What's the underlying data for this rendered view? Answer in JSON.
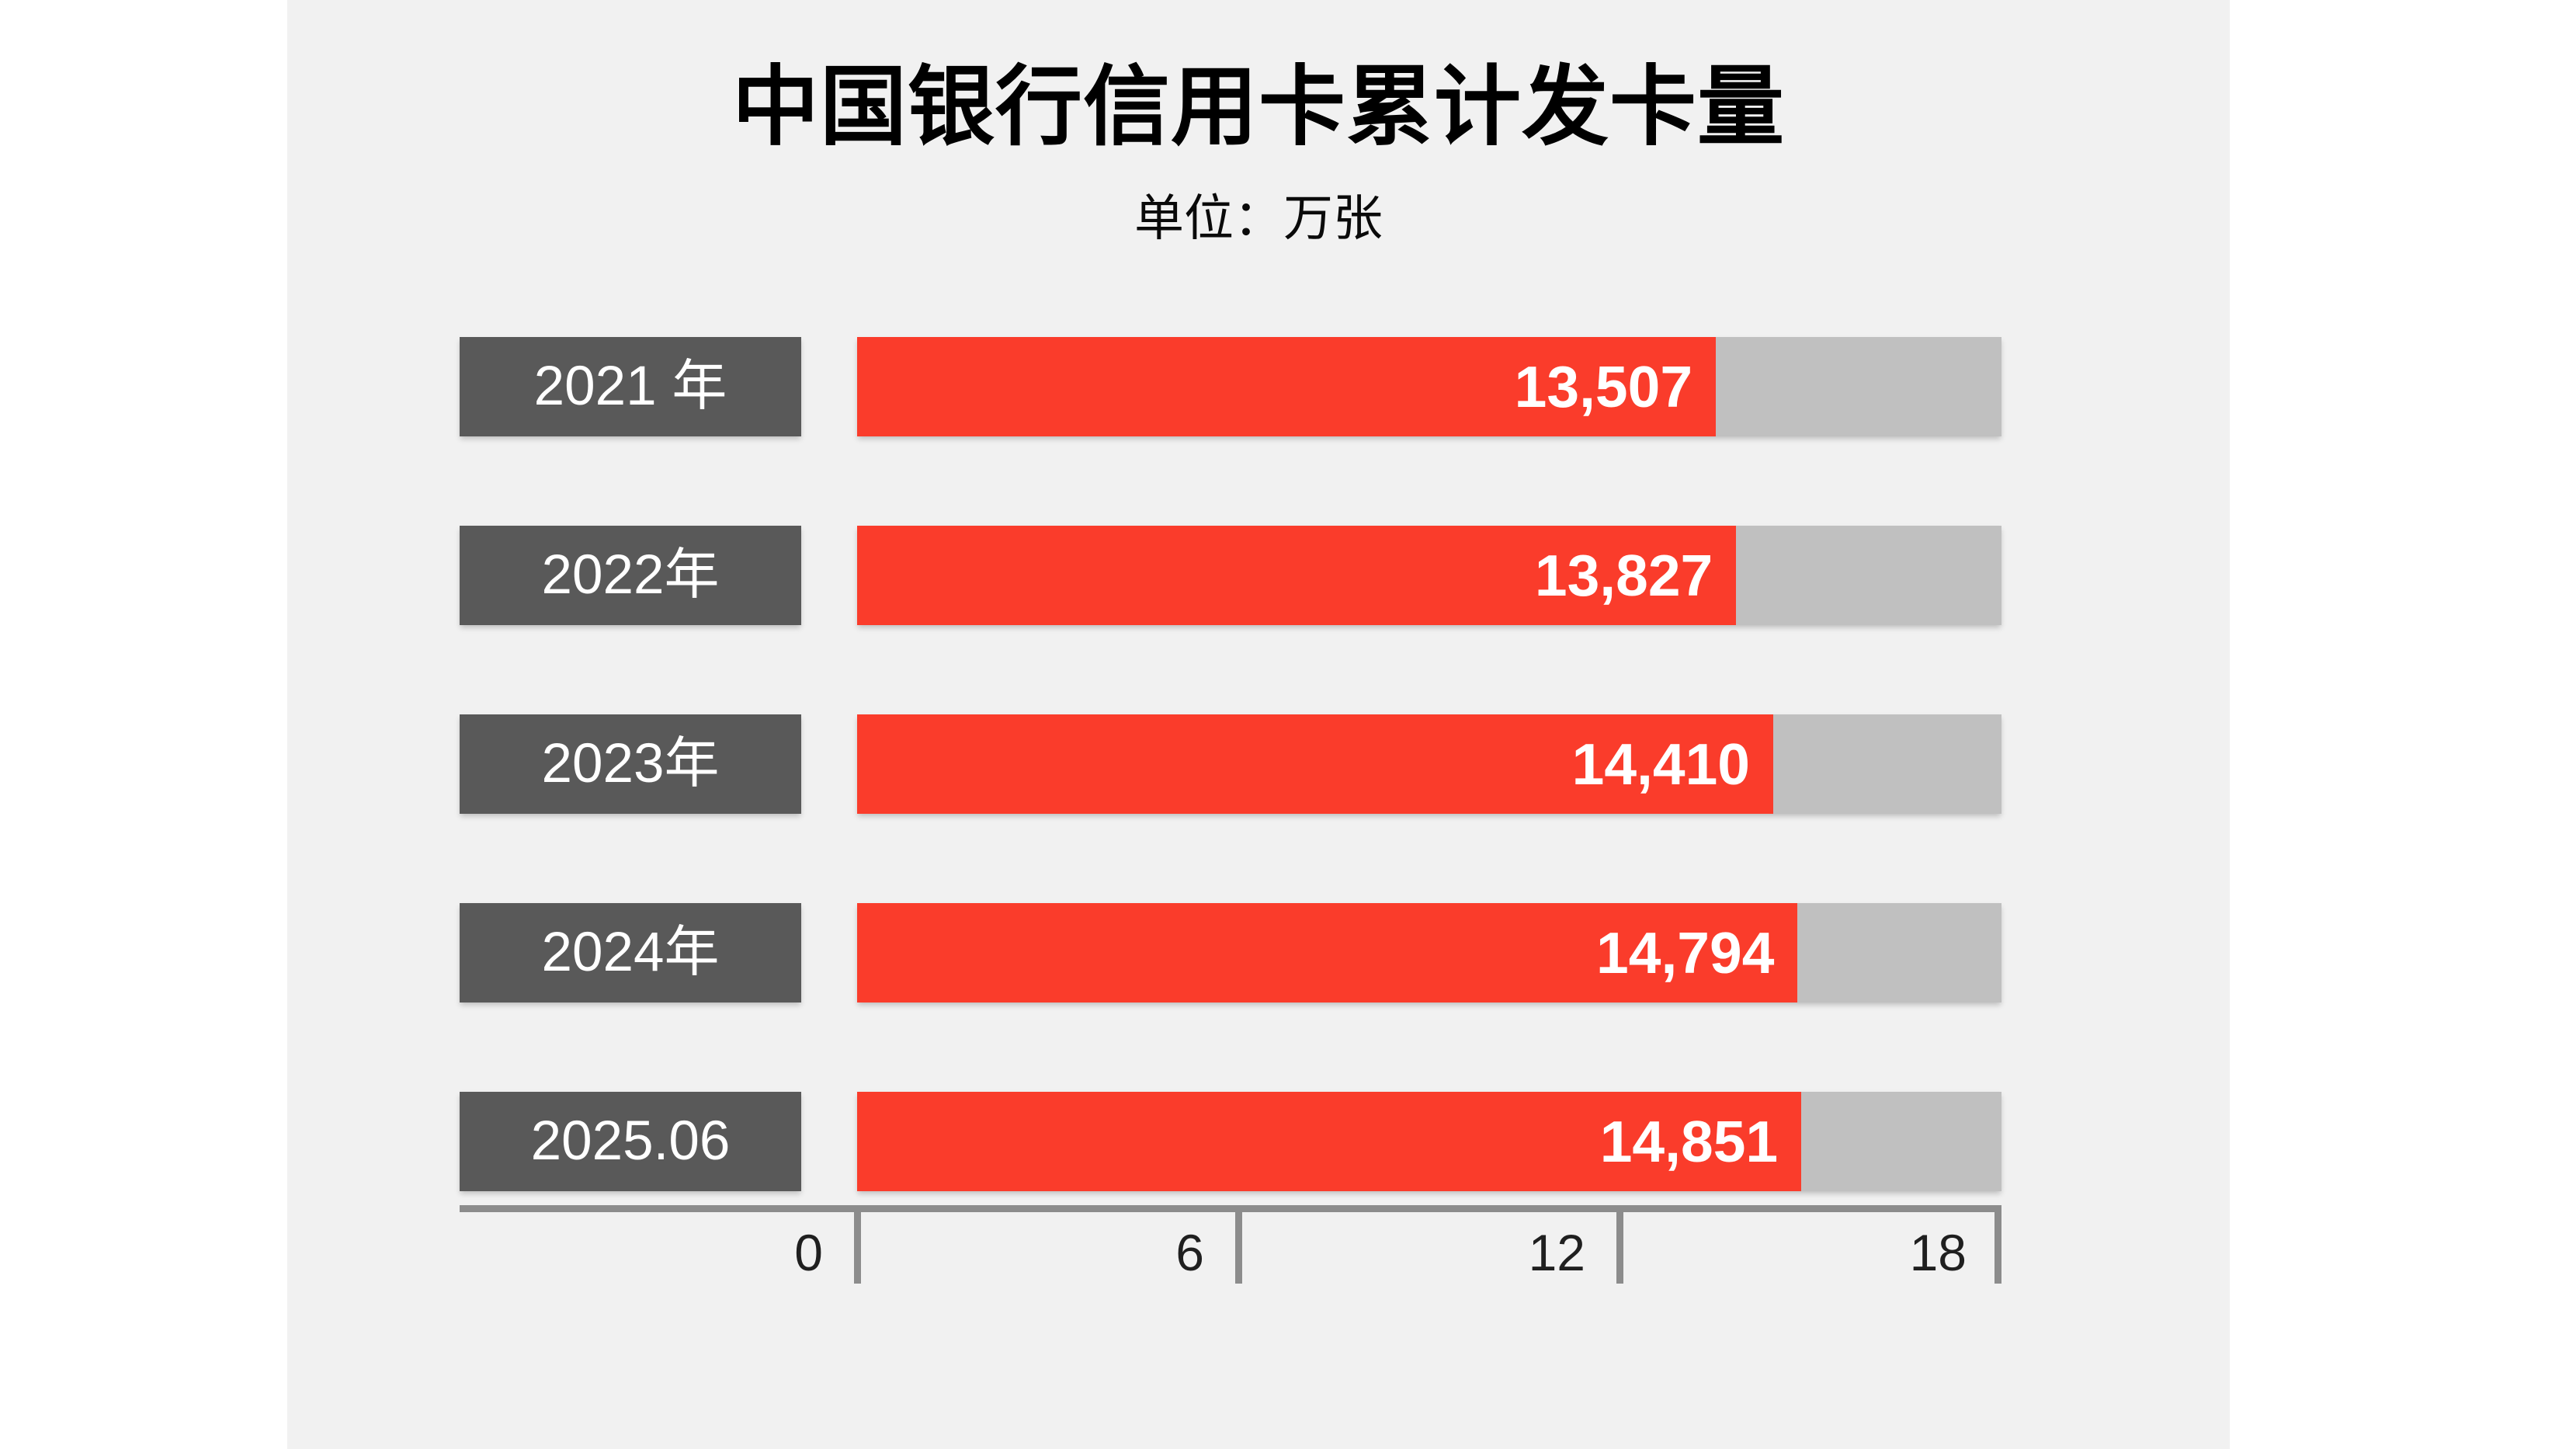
{
  "title": "中国银行信用卡累计发卡量",
  "subtitle": "单位：万张",
  "colors": {
    "page_background": "#ffffff",
    "panel_background": "#f1f1f1",
    "category_box": "#595959",
    "bar_fill": "#fa3c2b",
    "bar_track": "#c0c0c0",
    "axis": "#8c8c8c",
    "tick_text": "#1f1f1f",
    "value_text": "#ffffff"
  },
  "chart_data": {
    "type": "bar",
    "orientation": "horizontal",
    "title": "中国银行信用卡累计发卡量",
    "unit_label": "单位：万张",
    "unit": "万张",
    "categories": [
      "2021 年",
      "2022年",
      "2023年",
      "2024年",
      "2025.06"
    ],
    "values": [
      13507,
      13827,
      14410,
      14794,
      14851
    ],
    "value_labels": [
      "13,507",
      "13,827",
      "14,410",
      "14,794",
      "14,851"
    ],
    "xlim": [
      0,
      18000
    ],
    "x_ticks": [
      0,
      6000,
      12000,
      18000
    ],
    "x_tick_labels": [
      "0",
      "6",
      "12",
      "18"
    ],
    "grid": false,
    "legend": "none"
  }
}
